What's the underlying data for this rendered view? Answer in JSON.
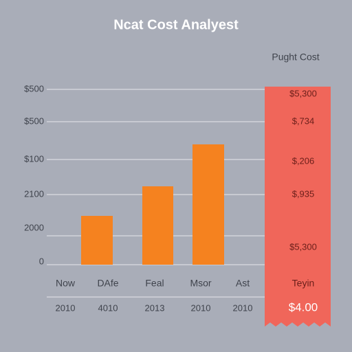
{
  "header": {
    "title": "Ncat Cost Analyest",
    "panel_title": "Pught Cost"
  },
  "y_axis_labels": [
    "$500",
    "$500",
    "$100",
    "2100",
    "2000",
    "0"
  ],
  "columns": [
    {
      "label": "Now",
      "year": "2010"
    },
    {
      "label": "DAfe",
      "year": "4010"
    },
    {
      "label": "Feal",
      "year": "2013"
    },
    {
      "label": "Msor",
      "year": "2010"
    },
    {
      "label": "Ast",
      "year": "2010"
    }
  ],
  "panel": {
    "values": [
      "$5,300",
      "$,734",
      "$,206",
      "$,935",
      "$5,300"
    ],
    "label": "Teyin",
    "total": "$4.00"
  }
}
